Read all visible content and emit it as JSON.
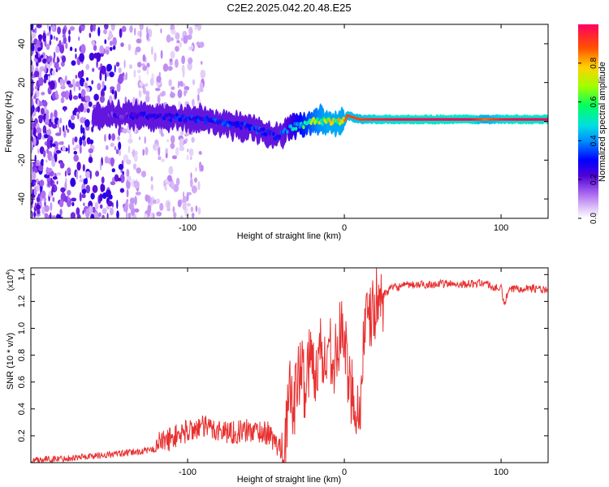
{
  "title": "C2E2.2025.042.20.48.E25",
  "chart_data": [
    {
      "type": "heatmap",
      "xlabel": "Height of straight line (km)",
      "ylabel": "Frequency (Hz)",
      "xlim": [
        -200,
        130
      ],
      "ylim": [
        -50,
        50
      ],
      "xticks": [
        -100,
        0,
        100
      ],
      "xtick_labels": [
        "-100",
        "0",
        "100"
      ],
      "yticks": [
        -40,
        -20,
        0,
        20,
        40
      ],
      "ytick_labels": [
        "-40",
        "-20",
        "0",
        "20",
        "40"
      ],
      "colorbar": {
        "label": "Normalized spectral amplitude",
        "range": [
          0,
          1
        ],
        "ticks": [
          0.0,
          0.2,
          0.4,
          0.6,
          0.8
        ],
        "tick_labels": [
          "0.0",
          "0.2",
          "0.4",
          "0.6",
          "0.8"
        ],
        "colormap": [
          "#ffffff",
          "#c8a0f0",
          "#6000d0",
          "#0000ff",
          "#00c8ff",
          "#00ff80",
          "#a0ff00",
          "#ffd000",
          "#ff4000",
          "#ff0050"
        ]
      },
      "ridge": {
        "x": [
          -200,
          -170,
          -150,
          -130,
          -110,
          -90,
          -70,
          -60,
          -50,
          -42,
          -35,
          -28,
          -20,
          -10,
          0,
          2,
          10,
          20,
          40,
          60,
          80,
          90,
          100,
          110,
          130
        ],
        "freq": [
          3,
          3,
          3,
          3,
          2,
          1,
          -2,
          -3,
          -6,
          -8,
          -3,
          -2,
          0,
          0,
          0,
          3,
          1,
          1,
          1,
          1,
          1,
          1,
          1,
          1,
          1
        ],
        "amplitude": [
          0.15,
          0.2,
          0.25,
          0.3,
          0.35,
          0.38,
          0.4,
          0.4,
          0.38,
          0.35,
          0.45,
          0.6,
          0.75,
          0.85,
          0.85,
          0.9,
          0.9,
          0.95,
          1.0,
          1.0,
          1.0,
          0.85,
          0.95,
          1.0,
          1.0
        ]
      }
    },
    {
      "type": "line",
      "xlabel": "Height of straight line (km)",
      "ylabel": "SNR (10 * v/v)",
      "y_multiplier_label": "(x10",
      "y_multiplier_exponent": "4",
      "xlim": [
        -200,
        130
      ],
      "ylim": [
        0,
        1.45
      ],
      "xticks": [
        -100,
        0,
        100
      ],
      "xtick_labels": [
        "-100",
        "0",
        "100"
      ],
      "yticks": [
        0.2,
        0.4,
        0.6,
        0.8,
        1.0,
        1.2,
        1.4
      ],
      "ytick_labels": [
        "0.2",
        "0.4",
        "0.6",
        "0.8",
        "1.0",
        "1.2",
        "1.4"
      ],
      "color": "#e83030",
      "series": [
        {
          "name": "SNR",
          "x": [
            -200,
            -180,
            -160,
            -140,
            -125,
            -115,
            -108,
            -100,
            -92,
            -85,
            -78,
            -70,
            -62,
            -55,
            -48,
            -45,
            -42,
            -38,
            -35,
            -32,
            -30,
            -27,
            -25,
            -22,
            -20,
            -17,
            -15,
            -12,
            -10,
            -7,
            -5,
            -3,
            0,
            2,
            5,
            8,
            10,
            12,
            15,
            18,
            20,
            25,
            30,
            40,
            60,
            80,
            90,
            95,
            100,
            102,
            105,
            110,
            120,
            130
          ],
          "y": [
            0.02,
            0.03,
            0.05,
            0.07,
            0.09,
            0.12,
            0.16,
            0.2,
            0.23,
            0.22,
            0.2,
            0.19,
            0.2,
            0.2,
            0.18,
            0.12,
            0.08,
            0.1,
            0.5,
            0.45,
            0.6,
            0.7,
            0.55,
            0.8,
            0.7,
            0.75,
            0.85,
            0.7,
            0.9,
            0.8,
            0.75,
            0.95,
            1.0,
            0.6,
            0.55,
            0.4,
            0.35,
            0.9,
            1.05,
            1.1,
            1.18,
            1.25,
            1.3,
            1.32,
            1.33,
            1.33,
            1.34,
            1.3,
            1.3,
            1.18,
            1.28,
            1.3,
            1.3,
            1.28
          ]
        }
      ]
    }
  ]
}
